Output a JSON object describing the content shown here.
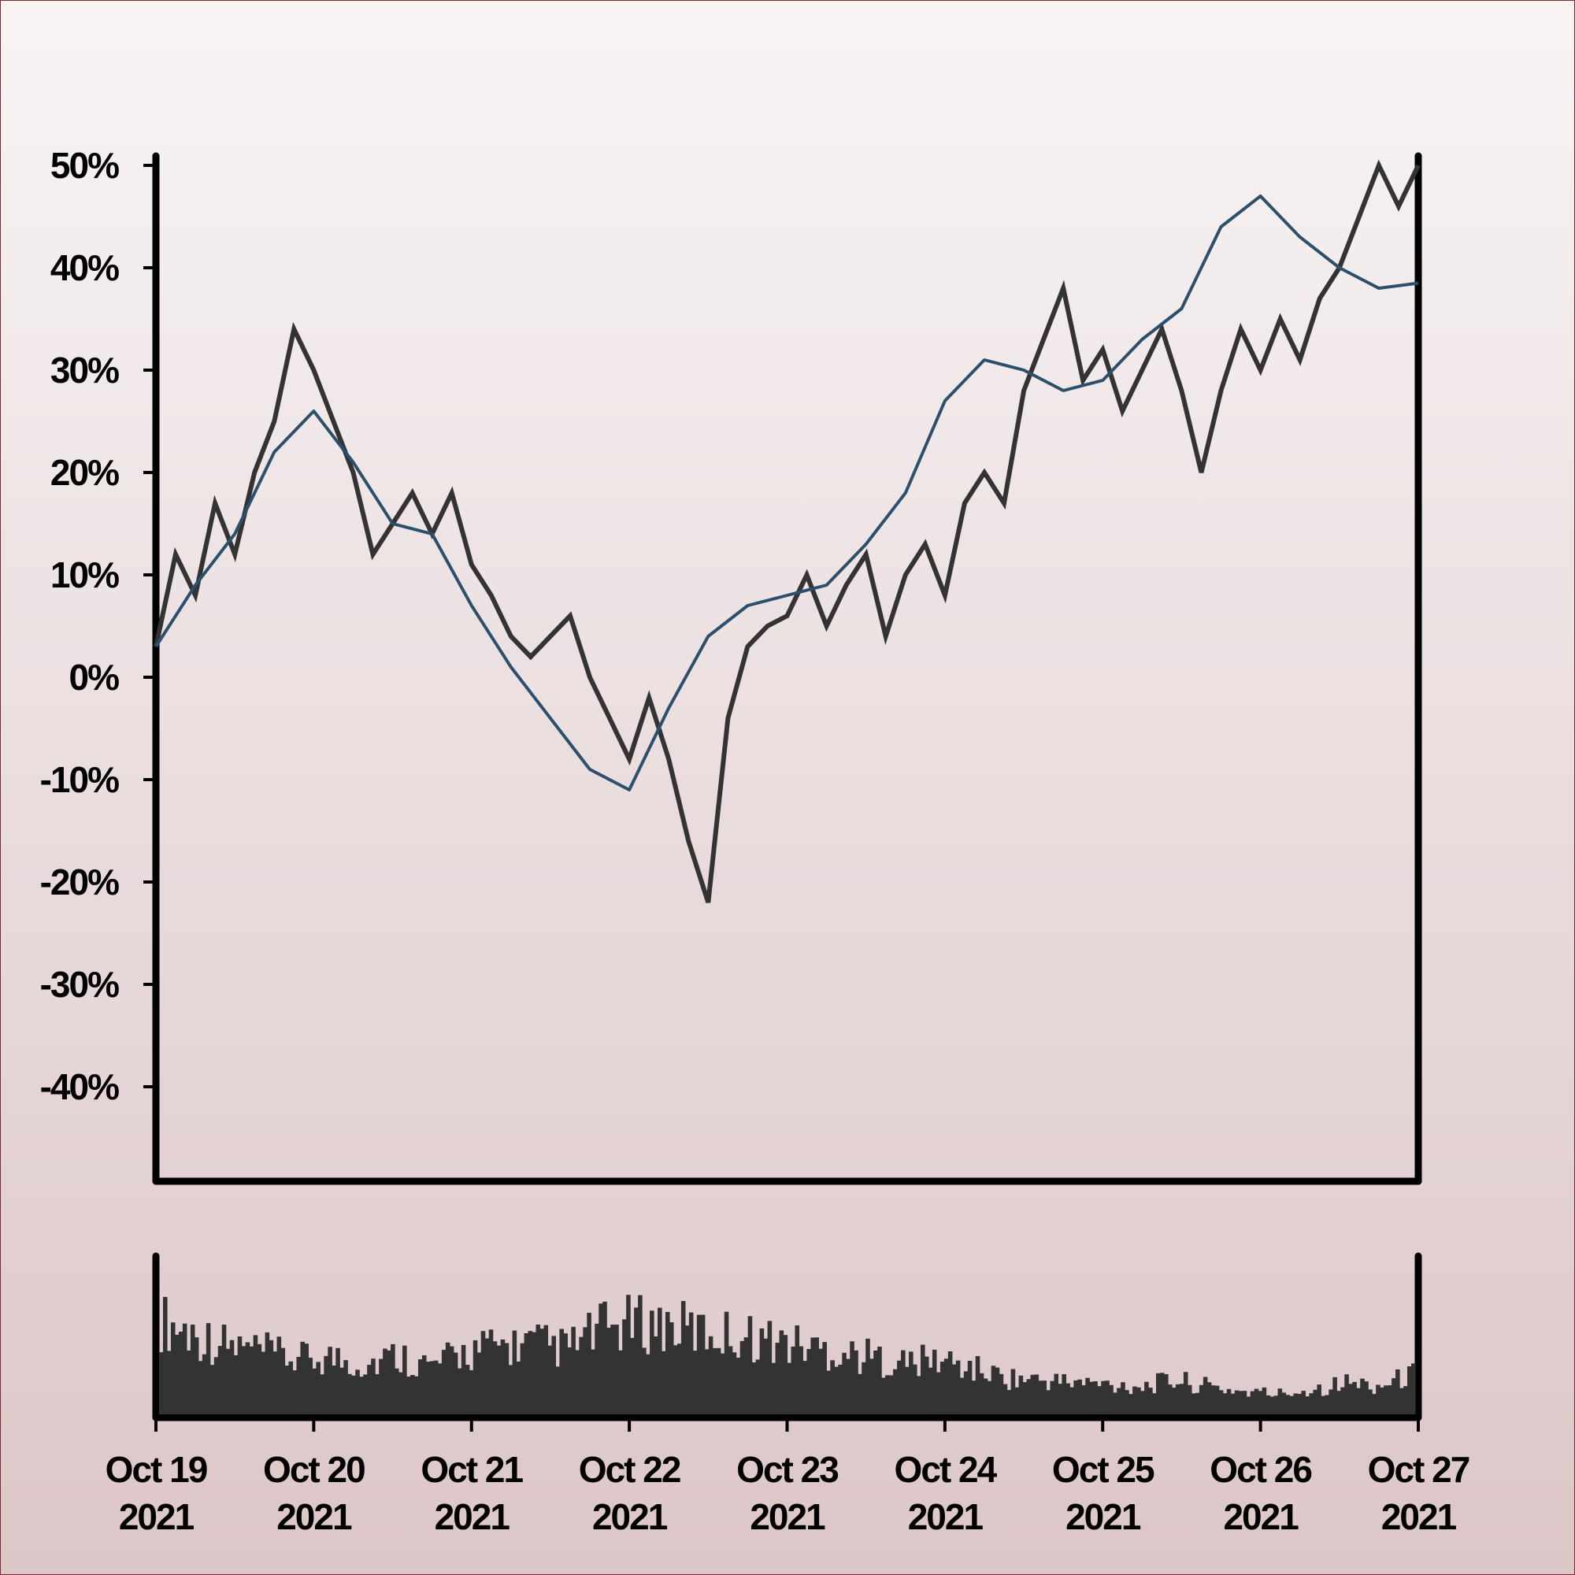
{
  "chart_data": [
    {
      "type": "line",
      "title": "",
      "xlabel": "",
      "ylabel": "",
      "x_start": "2021-10-19",
      "x_end": "2021-10-27",
      "x_tick_labels": [
        {
          "line1": "Oct 19",
          "line2": "2021"
        },
        {
          "line1": "Oct 20",
          "line2": "2021"
        },
        {
          "line1": "Oct 21",
          "line2": "2021"
        },
        {
          "line1": "Oct 22",
          "line2": "2021"
        },
        {
          "line1": "Oct 23",
          "line2": "2021"
        },
        {
          "line1": "Oct 24",
          "line2": "2021"
        },
        {
          "line1": "Oct 25",
          "line2": "2021"
        },
        {
          "line1": "Oct 26",
          "line2": "2021"
        },
        {
          "line1": "Oct 27",
          "line2": "2021"
        }
      ],
      "y_ticks": [
        -40,
        -30,
        -20,
        -10,
        0,
        10,
        20,
        30,
        40,
        50
      ],
      "y_tick_labels": [
        "-40%",
        "-30%",
        "-20%",
        "-10%",
        "0%",
        "10%",
        "20%",
        "30%",
        "40%",
        "50%"
      ],
      "ylim": [
        -50,
        50
      ],
      "grid": false,
      "colors": {
        "price": "#333333",
        "moving_average": "#2c4f6b",
        "axis": "#000000"
      },
      "series": [
        {
          "key": "price",
          "x": [
            "2021-10-19 00:00",
            "2021-10-19 03:00",
            "2021-10-19 06:00",
            "2021-10-19 09:00",
            "2021-10-19 12:00",
            "2021-10-19 15:00",
            "2021-10-19 18:00",
            "2021-10-19 21:00",
            "2021-10-20 00:00",
            "2021-10-20 03:00",
            "2021-10-20 06:00",
            "2021-10-20 09:00",
            "2021-10-20 12:00",
            "2021-10-20 15:00",
            "2021-10-20 18:00",
            "2021-10-20 21:00",
            "2021-10-21 00:00",
            "2021-10-21 03:00",
            "2021-10-21 06:00",
            "2021-10-21 09:00",
            "2021-10-21 12:00",
            "2021-10-21 15:00",
            "2021-10-21 18:00",
            "2021-10-21 21:00",
            "2021-10-22 00:00",
            "2021-10-22 03:00",
            "2021-10-22 06:00",
            "2021-10-22 09:00",
            "2021-10-22 12:00",
            "2021-10-22 15:00",
            "2021-10-22 18:00",
            "2021-10-22 21:00",
            "2021-10-23 00:00",
            "2021-10-23 03:00",
            "2021-10-23 06:00",
            "2021-10-23 09:00",
            "2021-10-23 12:00",
            "2021-10-23 15:00",
            "2021-10-23 18:00",
            "2021-10-23 21:00",
            "2021-10-24 00:00",
            "2021-10-24 03:00",
            "2021-10-24 06:00",
            "2021-10-24 09:00",
            "2021-10-24 12:00",
            "2021-10-24 15:00",
            "2021-10-24 18:00",
            "2021-10-24 21:00",
            "2021-10-25 00:00",
            "2021-10-25 03:00",
            "2021-10-25 06:00",
            "2021-10-25 09:00",
            "2021-10-25 12:00",
            "2021-10-25 15:00",
            "2021-10-25 18:00",
            "2021-10-25 21:00",
            "2021-10-26 00:00",
            "2021-10-26 03:00",
            "2021-10-26 06:00",
            "2021-10-26 09:00",
            "2021-10-26 12:00",
            "2021-10-26 15:00",
            "2021-10-26 18:00",
            "2021-10-26 21:00",
            "2021-10-27 00:00"
          ],
          "values": [
            3,
            12,
            8,
            17,
            12,
            20,
            25,
            34,
            30,
            25,
            20,
            12,
            15,
            18,
            14,
            18,
            11,
            8,
            4,
            2,
            4,
            6,
            0,
            -4,
            -8,
            -2,
            -8,
            -16,
            -22,
            -4,
            3,
            5,
            6,
            10,
            5,
            9,
            12,
            4,
            10,
            13,
            8,
            17,
            20,
            17,
            28,
            33,
            38,
            29,
            32,
            26,
            30,
            34,
            28,
            20,
            28,
            34,
            30,
            35,
            31,
            37,
            40,
            45,
            50,
            46,
            50
          ]
        },
        {
          "key": "moving_average",
          "x": [
            "2021-10-19 00:00",
            "2021-10-19 06:00",
            "2021-10-19 12:00",
            "2021-10-19 18:00",
            "2021-10-20 00:00",
            "2021-10-20 06:00",
            "2021-10-20 12:00",
            "2021-10-20 18:00",
            "2021-10-21 00:00",
            "2021-10-21 06:00",
            "2021-10-21 12:00",
            "2021-10-21 18:00",
            "2021-10-22 00:00",
            "2021-10-22 06:00",
            "2021-10-22 12:00",
            "2021-10-22 18:00",
            "2021-10-23 00:00",
            "2021-10-23 06:00",
            "2021-10-23 12:00",
            "2021-10-23 18:00",
            "2021-10-24 00:00",
            "2021-10-24 06:00",
            "2021-10-24 12:00",
            "2021-10-24 18:00",
            "2021-10-25 00:00",
            "2021-10-25 06:00",
            "2021-10-25 12:00",
            "2021-10-25 18:00",
            "2021-10-26 00:00",
            "2021-10-26 06:00",
            "2021-10-26 12:00",
            "2021-10-26 18:00",
            "2021-10-27 00:00"
          ],
          "values": [
            3,
            9,
            14,
            22,
            26,
            21,
            15,
            14,
            7,
            1,
            -4,
            -9,
            -11,
            -3,
            4,
            7,
            8,
            9,
            13,
            18,
            27,
            31,
            30,
            28,
            29,
            33,
            36,
            44,
            47,
            43,
            40,
            38,
            38.5
          ]
        }
      ]
    },
    {
      "type": "bar",
      "title": "",
      "xlabel": "",
      "ylabel": "",
      "x_start": "2021-10-19",
      "x_end": "2021-10-27",
      "relative_volume": [
        0.82,
        0.7,
        0.6,
        0.55,
        0.48,
        0.5,
        0.44,
        0.52,
        0.42,
        0.55,
        0.6,
        0.62,
        0.58,
        0.75,
        0.8,
        0.78,
        0.72,
        0.7,
        0.65,
        0.6,
        0.55,
        0.5,
        0.45,
        0.48,
        0.4,
        0.32,
        0.3,
        0.28,
        0.26,
        0.25,
        0.3,
        0.24,
        0.2,
        0.18,
        0.22,
        0.28,
        0.25,
        0.35
      ]
    }
  ]
}
